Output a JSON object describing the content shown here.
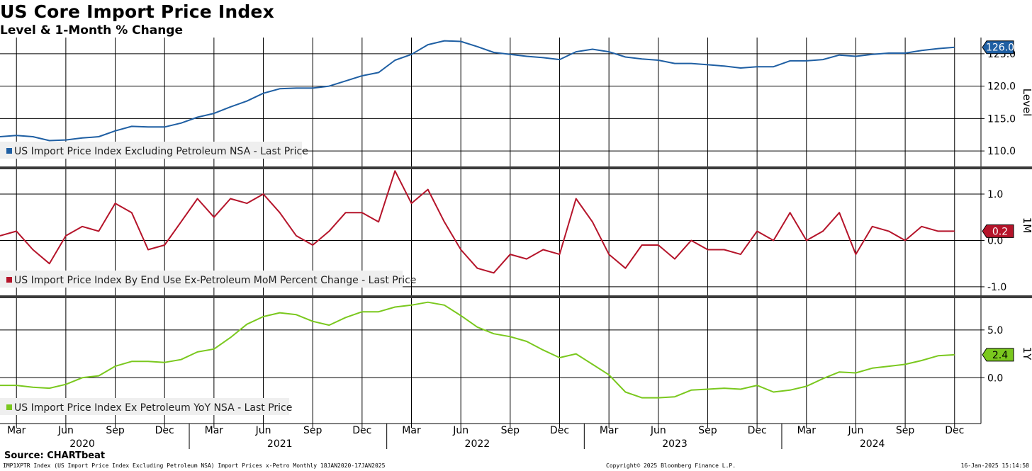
{
  "title": "US Core Import Price Index",
  "subtitle": "Level & 1-Month % Change",
  "footer": {
    "source": "Source: CHARTbeat",
    "left": "IMP1XPTR Index (US Import Price Index Excluding Petroleum NSA) Import Prices x-Petro  Monthly 18JAN2020-17JAN2025",
    "middle": "Copyright© 2025 Bloomberg Finance L.P.",
    "right": "16-Jan-2025 15:14:58"
  },
  "colors": {
    "level": "#1f5fa3",
    "mom": "#b5142a",
    "yoy": "#7ac81e",
    "grid": "#000000"
  },
  "chart_data": [
    {
      "type": "line",
      "panel_label": "Level",
      "legend": "US Import Price Index Excluding Petroleum NSA - Last Price",
      "color": "#1f5fa3",
      "ylim": [
        107.5,
        127.5
      ],
      "yticks": [
        110,
        115,
        120,
        125
      ],
      "ytick_labels": [
        "110.0",
        "115.0",
        "120.0",
        "125.0"
      ],
      "last_value_label": "126.0",
      "last_value": 126.0,
      "values": [
        112.2,
        112.4,
        112.2,
        111.6,
        111.7,
        112.0,
        112.2,
        113.1,
        113.8,
        113.7,
        113.7,
        114.3,
        115.2,
        115.8,
        116.8,
        117.7,
        118.9,
        119.6,
        119.7,
        119.7,
        120.0,
        120.8,
        121.6,
        122.1,
        124.0,
        124.9,
        126.4,
        127.0,
        126.9,
        126.1,
        125.2,
        124.9,
        124.6,
        124.4,
        124.1,
        125.3,
        125.7,
        125.3,
        124.5,
        124.2,
        124.0,
        123.5,
        123.5,
        123.3,
        123.1,
        122.8,
        123.0,
        123.0,
        123.9,
        123.9,
        124.1,
        124.8,
        124.6,
        124.9,
        125.1,
        125.1,
        125.5,
        125.8,
        126.0
      ]
    },
    {
      "type": "line",
      "panel_label": "1M",
      "legend": "US Import Price Index By End Use Ex-Petroleum MoM Percent Change - Last Price",
      "color": "#b5142a",
      "ylim": [
        -1.2,
        1.55
      ],
      "yticks": [
        -1.0,
        0.0,
        1.0
      ],
      "ytick_labels": [
        "-1.0",
        "0.0",
        "1.0"
      ],
      "last_value_label": "0.2",
      "last_value": 0.2,
      "values": [
        0.1,
        0.2,
        -0.2,
        -0.5,
        0.1,
        0.3,
        0.2,
        0.8,
        0.6,
        -0.2,
        -0.1,
        0.4,
        0.9,
        0.5,
        0.9,
        0.8,
        1.0,
        0.6,
        0.1,
        -0.1,
        0.2,
        0.6,
        0.6,
        0.4,
        1.5,
        0.8,
        1.1,
        0.4,
        -0.2,
        -0.6,
        -0.7,
        -0.3,
        -0.4,
        -0.2,
        -0.3,
        0.9,
        0.4,
        -0.3,
        -0.6,
        -0.1,
        -0.1,
        -0.4,
        0.0,
        -0.2,
        -0.2,
        -0.3,
        0.2,
        0.0,
        0.6,
        0.0,
        0.2,
        0.6,
        -0.3,
        0.3,
        0.2,
        0.0,
        0.3,
        0.2,
        0.2
      ]
    },
    {
      "type": "line",
      "panel_label": "1Y",
      "legend": "US Import Price Index Ex Petroleum YoY NSA - Last Price",
      "color": "#7ac81e",
      "ylim": [
        -4.8,
        8.4
      ],
      "yticks": [
        0.0,
        5.0
      ],
      "ytick_labels": [
        "0.0",
        "5.0"
      ],
      "last_value_label": "2.4",
      "last_value": 2.4,
      "values": [
        -0.8,
        -0.8,
        -1.0,
        -1.1,
        -0.7,
        0.0,
        0.2,
        1.2,
        1.7,
        1.7,
        1.6,
        1.9,
        2.7,
        3.0,
        4.2,
        5.6,
        6.4,
        6.8,
        6.6,
        5.9,
        5.5,
        6.3,
        6.9,
        6.9,
        7.4,
        7.6,
        7.9,
        7.6,
        6.5,
        5.3,
        4.6,
        4.3,
        3.8,
        2.9,
        2.1,
        2.5,
        1.4,
        0.3,
        -1.5,
        -2.1,
        -2.1,
        -2.0,
        -1.3,
        -1.2,
        -1.1,
        -1.2,
        -0.8,
        -1.5,
        -1.3,
        -0.9,
        -0.1,
        0.6,
        0.5,
        1.0,
        1.2,
        1.4,
        1.8,
        2.3,
        2.4
      ]
    }
  ],
  "x_axis": {
    "months": [
      "Mar",
      "Jun",
      "Sep",
      "Dec",
      "Mar",
      "Jun",
      "Sep",
      "Dec",
      "Mar",
      "Jun",
      "Sep",
      "Dec",
      "Mar",
      "Jun",
      "Sep",
      "Dec",
      "Mar",
      "Jun",
      "Sep",
      "Dec"
    ],
    "years": [
      "2020",
      "2021",
      "2022",
      "2023",
      "2024"
    ],
    "start": "Feb 2020",
    "end": "Dec 2024",
    "month_label_indices": [
      1,
      4,
      7,
      10,
      13,
      16,
      19,
      22,
      25,
      28,
      31,
      34,
      37,
      40,
      43,
      46,
      49,
      52,
      55,
      58
    ],
    "year_label_indices": [
      5,
      17,
      29,
      41,
      53
    ]
  }
}
